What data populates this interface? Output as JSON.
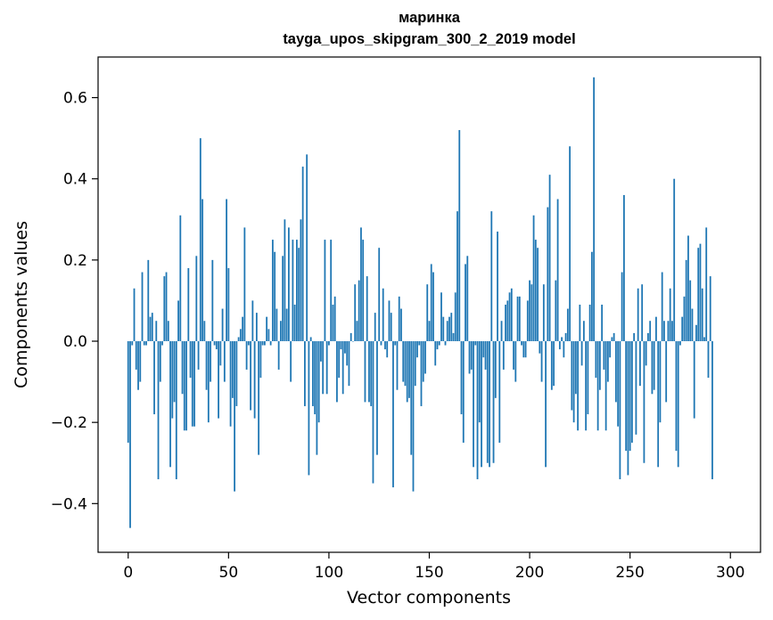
{
  "chart_data": {
    "type": "bar",
    "title": "маринка",
    "subtitle": "tayga_upos_skipgram_300_2_2019 model",
    "xlabel": "Vector components",
    "ylabel": "Components values",
    "xlim": [
      -15,
      315
    ],
    "ylim": [
      -0.52,
      0.7
    ],
    "xticks": [
      0,
      50,
      100,
      150,
      200,
      250,
      300
    ],
    "yticks": [
      -0.4,
      -0.2,
      0.0,
      0.2,
      0.4,
      0.6
    ],
    "ytick_labels": [
      "−0.4",
      "−0.2",
      "0.0",
      "0.2",
      "0.4",
      "0.6"
    ],
    "grid": false,
    "bar_color": "#1f77b4",
    "values": [
      -0.25,
      -0.46,
      -0.01,
      0.13,
      -0.07,
      -0.12,
      -0.1,
      0.17,
      -0.01,
      -0.01,
      0.2,
      0.06,
      0.07,
      -0.18,
      0.05,
      -0.34,
      -0.1,
      -0.01,
      0.16,
      0.17,
      0.05,
      -0.31,
      -0.19,
      -0.15,
      -0.34,
      0.1,
      0.31,
      -0.13,
      -0.22,
      -0.22,
      0.18,
      -0.09,
      -0.21,
      -0.21,
      0.21,
      -0.07,
      0.5,
      0.35,
      0.05,
      -0.12,
      -0.2,
      -0.1,
      0.2,
      -0.01,
      -0.02,
      -0.19,
      -0.06,
      0.08,
      -0.1,
      0.35,
      0.18,
      -0.21,
      -0.14,
      -0.37,
      -0.16,
      0.01,
      0.03,
      0.06,
      0.28,
      -0.07,
      -0.01,
      -0.17,
      0.1,
      -0.19,
      0.07,
      -0.28,
      -0.09,
      -0.01,
      -0.01,
      0.06,
      0.03,
      -0.01,
      0.25,
      0.22,
      0.08,
      -0.07,
      0.05,
      0.21,
      0.3,
      0.08,
      0.28,
      -0.1,
      0.25,
      0.09,
      0.25,
      0.23,
      0.3,
      0.43,
      -0.16,
      0.46,
      -0.33,
      0.01,
      -0.16,
      -0.18,
      -0.28,
      -0.2,
      -0.05,
      -0.13,
      0.25,
      -0.13,
      -0.01,
      0.25,
      0.09,
      0.11,
      -0.15,
      -0.09,
      -0.02,
      -0.13,
      -0.03,
      -0.06,
      -0.11,
      0.02,
      0.0,
      0.14,
      0.05,
      0.15,
      0.28,
      0.25,
      -0.15,
      0.16,
      -0.15,
      -0.16,
      -0.35,
      0.07,
      -0.28,
      0.23,
      -0.01,
      0.13,
      -0.02,
      -0.04,
      0.1,
      0.07,
      -0.36,
      -0.01,
      -0.12,
      0.11,
      0.08,
      -0.1,
      -0.11,
      -0.15,
      -0.14,
      -0.28,
      -0.37,
      -0.11,
      -0.04,
      -0.01,
      -0.16,
      -0.1,
      -0.08,
      0.14,
      0.05,
      0.19,
      0.17,
      -0.06,
      -0.02,
      -0.01,
      0.12,
      0.06,
      -0.01,
      0.05,
      0.06,
      0.07,
      0.02,
      0.12,
      0.32,
      0.52,
      -0.18,
      -0.25,
      0.19,
      0.21,
      -0.08,
      -0.07,
      -0.31,
      -0.01,
      -0.34,
      -0.2,
      -0.31,
      -0.04,
      -0.07,
      -0.3,
      -0.31,
      0.32,
      -0.3,
      -0.14,
      0.27,
      -0.25,
      0.05,
      -0.07,
      0.09,
      0.1,
      0.12,
      0.13,
      -0.07,
      -0.1,
      0.11,
      0.11,
      -0.01,
      -0.04,
      -0.04,
      0.1,
      0.15,
      0.14,
      0.31,
      0.25,
      0.23,
      -0.03,
      -0.1,
      0.14,
      -0.31,
      0.33,
      0.41,
      -0.12,
      -0.11,
      0.15,
      0.35,
      -0.02,
      0.01,
      -0.04,
      0.02,
      0.08,
      0.48,
      -0.17,
      -0.2,
      -0.13,
      -0.22,
      0.09,
      -0.06,
      0.05,
      -0.22,
      -0.18,
      0.09,
      0.22,
      0.65,
      -0.09,
      -0.22,
      -0.12,
      0.09,
      -0.07,
      -0.22,
      -0.1,
      -0.04,
      0.01,
      0.02,
      -0.15,
      -0.21,
      -0.34,
      0.17,
      0.36,
      -0.27,
      -0.33,
      -0.27,
      -0.25,
      0.02,
      -0.23,
      0.13,
      -0.11,
      0.14,
      -0.3,
      -0.06,
      0.02,
      0.05,
      -0.13,
      -0.12,
      0.06,
      -0.31,
      -0.2,
      0.17,
      0.05,
      -0.15,
      0.05,
      0.13,
      0.05,
      0.4,
      -0.27,
      -0.31,
      -0.01,
      0.06,
      0.11,
      0.2,
      0.26,
      0.15,
      0.08,
      -0.19,
      0.04,
      0.23,
      0.24,
      0.13,
      0.01,
      0.28,
      -0.09,
      0.16,
      -0.34
    ]
  }
}
